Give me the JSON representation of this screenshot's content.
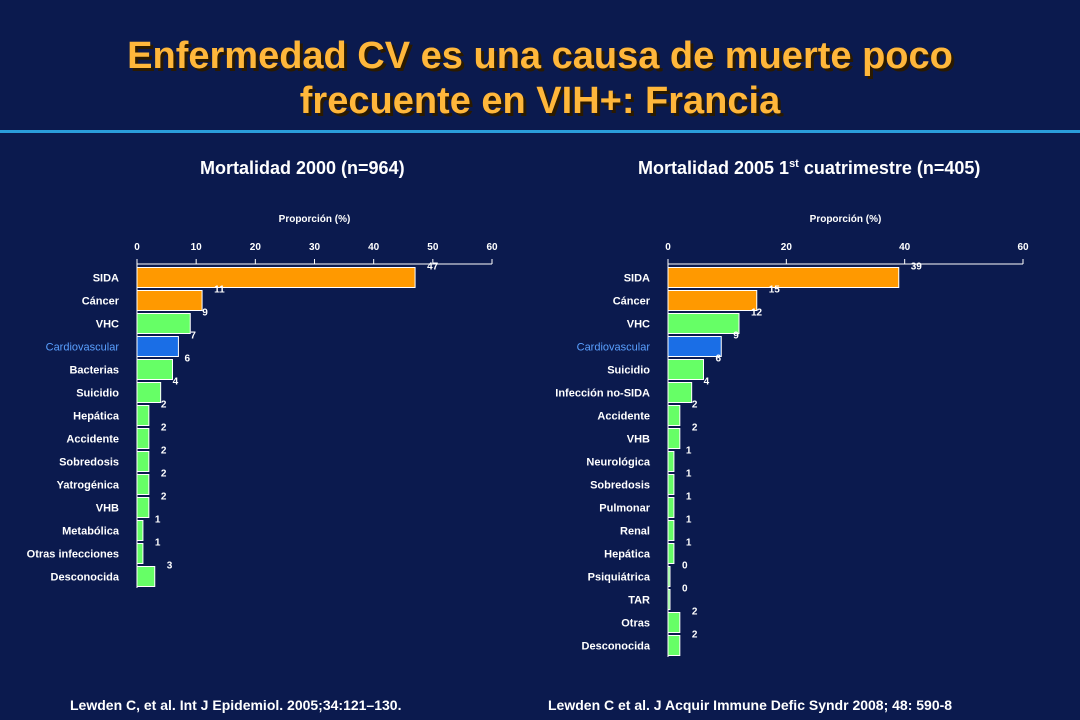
{
  "title": {
    "line1": "Enfermedad CV es una causa de muerte poco",
    "line2": "frecuente en VIH+: Francia"
  },
  "colors": {
    "background": "#0b1a4e",
    "title": "#ffb73b",
    "rule": "#2a9ddb",
    "orange": "#ff9900",
    "green": "#66ff66",
    "blue": "#1a6ee6",
    "highlight_label": "#5aa0ff"
  },
  "chart_data": [
    {
      "type": "bar",
      "orientation": "horizontal",
      "title": "Mortalidad 2000 (n=964)",
      "xlabel": "Proporción (%)",
      "xlim": [
        0,
        60
      ],
      "ticks": [
        0,
        10,
        20,
        30,
        40,
        50,
        60
      ],
      "categories": [
        "SIDA",
        "Cáncer",
        "VHC",
        "Cardiovascular",
        "Bacterias",
        "Suicidio",
        "Hepática",
        "Accidente",
        "Sobredosis",
        "Yatrogénica",
        "VHB",
        "Metabólica",
        "Otras infecciones",
        "Desconocida"
      ],
      "values": [
        47,
        11,
        9,
        7,
        6,
        4,
        2,
        2,
        2,
        2,
        2,
        1,
        1,
        3
      ],
      "bar_colors": [
        "orange",
        "orange",
        "green",
        "blue",
        "green",
        "green",
        "green",
        "green",
        "green",
        "green",
        "green",
        "green",
        "green",
        "green"
      ],
      "highlight": "Cardiovascular",
      "grid": false,
      "citation": "Lewden C, et al. Int J Epidemiol. 2005;34:121–130."
    },
    {
      "type": "bar",
      "orientation": "horizontal",
      "title": "Mortalidad 2005 1st cuatrimestre (n=405)",
      "title_main": "Mortalidad 2005 1",
      "title_sup": "st",
      "title_rest": " cuatrimestre (n=405)",
      "xlabel": "Proporción (%)",
      "xlim": [
        0,
        60
      ],
      "ticks": [
        0,
        20,
        40,
        60
      ],
      "categories": [
        "SIDA",
        "Cáncer",
        "VHC",
        "Cardiovascular",
        "Suicidio",
        "Infección no-SIDA",
        "Accidente",
        "VHB",
        "Neurológica",
        "Sobredosis",
        "Pulmonar",
        "Renal",
        "Hepática",
        "Psiquiátrica",
        "TAR",
        "Otras",
        "Desconocida"
      ],
      "values": [
        39,
        15,
        12,
        9,
        6,
        4,
        2,
        2,
        1,
        1,
        1,
        1,
        1,
        0,
        0,
        2,
        2
      ],
      "bar_colors": [
        "orange",
        "orange",
        "green",
        "blue",
        "green",
        "green",
        "green",
        "green",
        "green",
        "green",
        "green",
        "green",
        "green",
        "green",
        "green",
        "green",
        "green"
      ],
      "highlight": "Cardiovascular",
      "grid": false,
      "citation": "Lewden C et al. J Acquir Immune Defic Syndr 2008; 48: 590-8"
    }
  ]
}
